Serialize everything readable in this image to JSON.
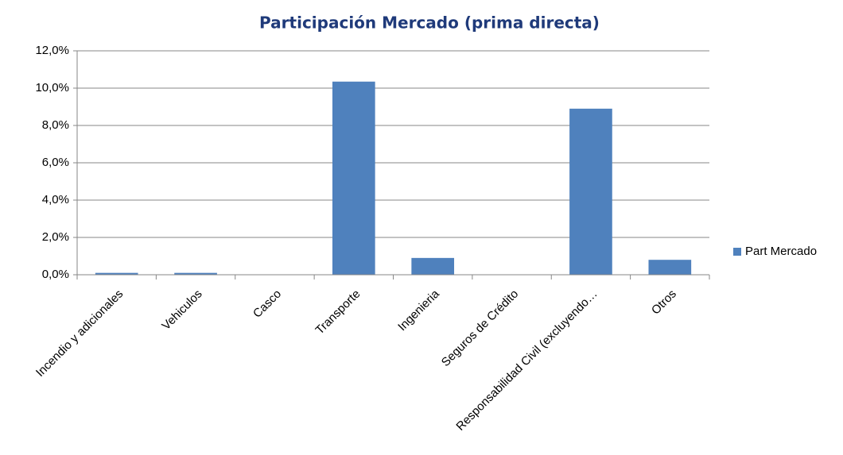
{
  "chart_data": {
    "type": "bar",
    "title": "Participación Mercado (prima directa)",
    "categories": [
      "Incendio y adicionales",
      "Vehiculos",
      "Casco",
      "Transporte",
      "Ingenieria",
      "Seguros de Crédito",
      "Responsabilidad Civil (excluyendo…",
      "Otros"
    ],
    "series": [
      {
        "name": "Part Mercado",
        "color": "#4f81bd",
        "values": [
          0.1,
          0.1,
          0,
          10.35,
          0.9,
          0,
          8.9,
          0.8
        ]
      }
    ],
    "ylim": [
      0,
      12
    ],
    "yticks": [
      {
        "value": 0,
        "label": "0,0%"
      },
      {
        "value": 2,
        "label": "2,0%"
      },
      {
        "value": 4,
        "label": "4,0%"
      },
      {
        "value": 6,
        "label": "6,0%"
      },
      {
        "value": 8,
        "label": "8,0%"
      },
      {
        "value": 10,
        "label": "10,0%"
      },
      {
        "value": 12,
        "label": "12,0%"
      }
    ],
    "grid": true,
    "legend": "right"
  }
}
